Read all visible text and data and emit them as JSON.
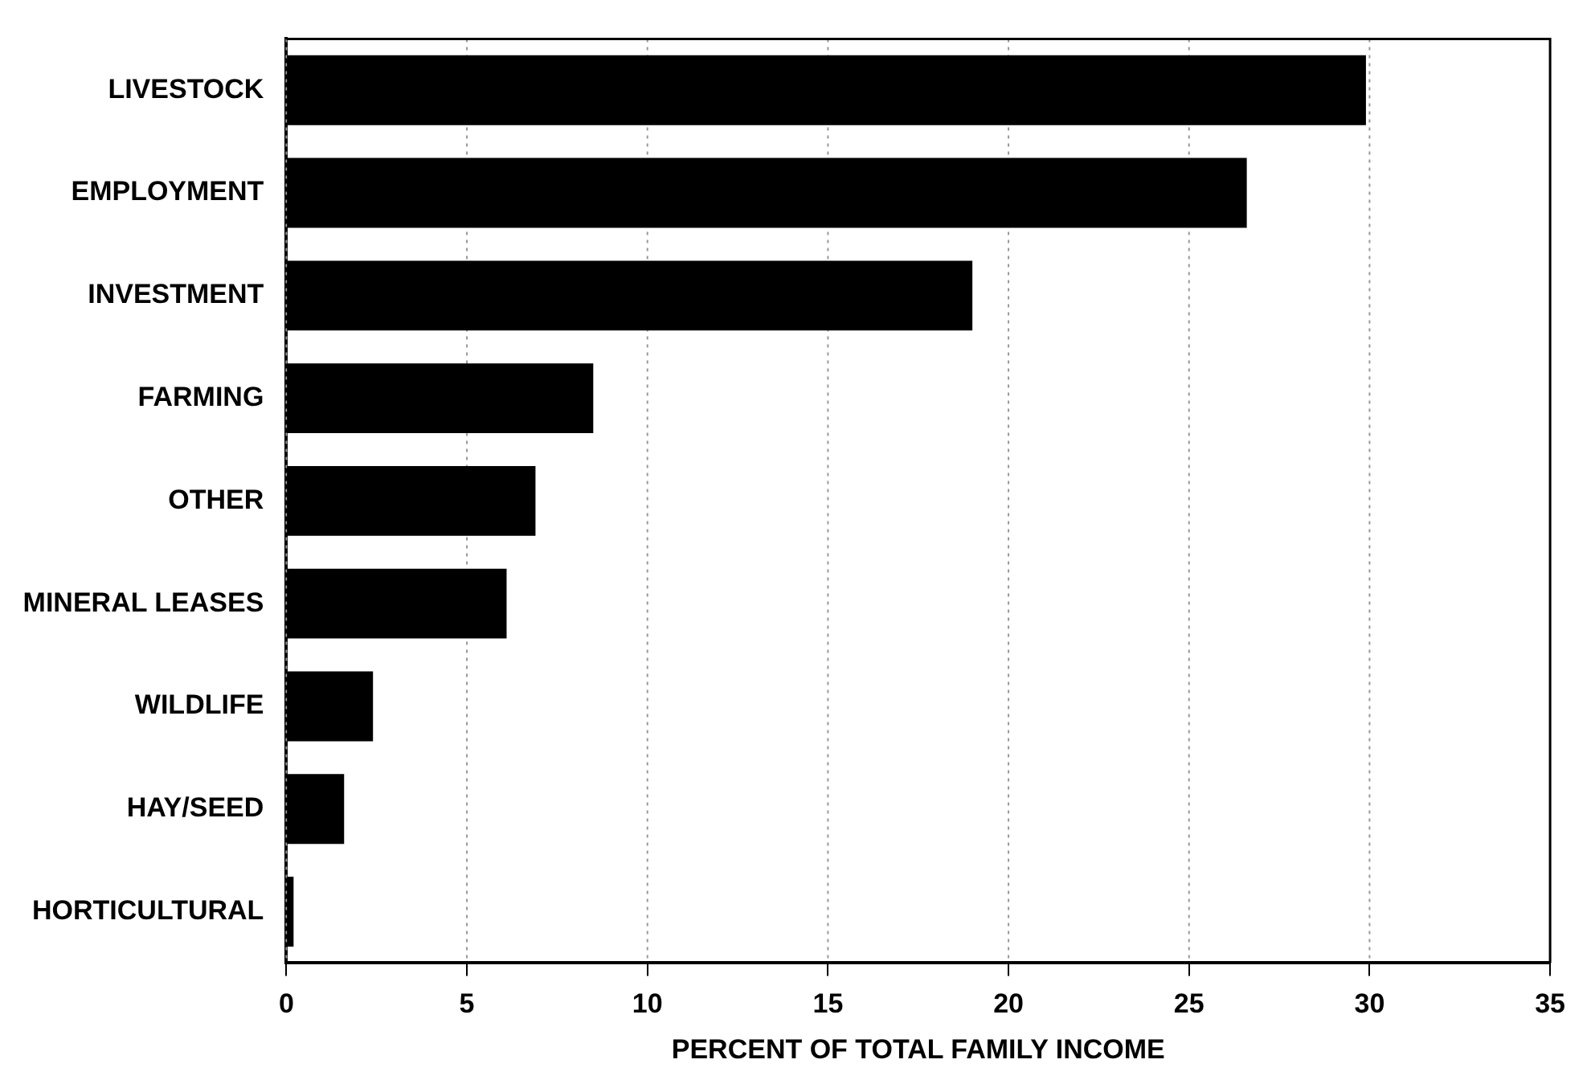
{
  "chart_data": {
    "type": "bar",
    "orientation": "horizontal",
    "xlabel": "PERCENT OF TOTAL FAMILY INCOME",
    "categories": [
      "LIVESTOCK",
      "EMPLOYMENT",
      "INVESTMENT",
      "FARMING",
      "OTHER",
      "MINERAL LEASES",
      "WILDLIFE",
      "HAY/SEED",
      "HORTICULTURAL"
    ],
    "values": [
      29.9,
      26.6,
      19.0,
      8.5,
      6.9,
      6.1,
      2.4,
      1.6,
      0.2
    ],
    "color": "#000000",
    "xlim": [
      0,
      35
    ],
    "xticks": [
      0,
      5,
      10,
      15,
      20,
      25,
      30,
      35
    ],
    "grid": "x",
    "legend": false
  }
}
